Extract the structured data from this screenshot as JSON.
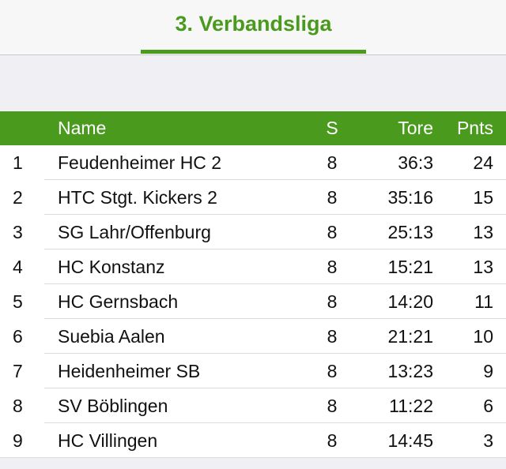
{
  "tabs": [
    {
      "label": "3. Verbandsliga",
      "active": true
    }
  ],
  "colors": {
    "accent": "#4a9a1e"
  },
  "table": {
    "headers": {
      "rank": "",
      "name": "Name",
      "s": "S",
      "tore": "Tore",
      "pnts": "Pnts"
    },
    "rows": [
      {
        "rank": "1",
        "name": "Feudenheimer HC 2",
        "s": "8",
        "tore": "36:3",
        "pnts": "24"
      },
      {
        "rank": "2",
        "name": "HTC Stgt. Kickers 2",
        "s": "8",
        "tore": "35:16",
        "pnts": "15"
      },
      {
        "rank": "3",
        "name": "SG Lahr/Offenburg",
        "s": "8",
        "tore": "25:13",
        "pnts": "13"
      },
      {
        "rank": "4",
        "name": "HC Konstanz",
        "s": "8",
        "tore": "15:21",
        "pnts": "13"
      },
      {
        "rank": "5",
        "name": "HC Gernsbach",
        "s": "8",
        "tore": "14:20",
        "pnts": "11"
      },
      {
        "rank": "6",
        "name": "Suebia Aalen",
        "s": "8",
        "tore": "21:21",
        "pnts": "10"
      },
      {
        "rank": "7",
        "name": "Heidenheimer SB",
        "s": "8",
        "tore": "13:23",
        "pnts": "9"
      },
      {
        "rank": "8",
        "name": "SV Böblingen",
        "s": "8",
        "tore": "11:22",
        "pnts": "6"
      },
      {
        "rank": "9",
        "name": "HC Villingen",
        "s": "8",
        "tore": "14:45",
        "pnts": "3"
      }
    ]
  }
}
